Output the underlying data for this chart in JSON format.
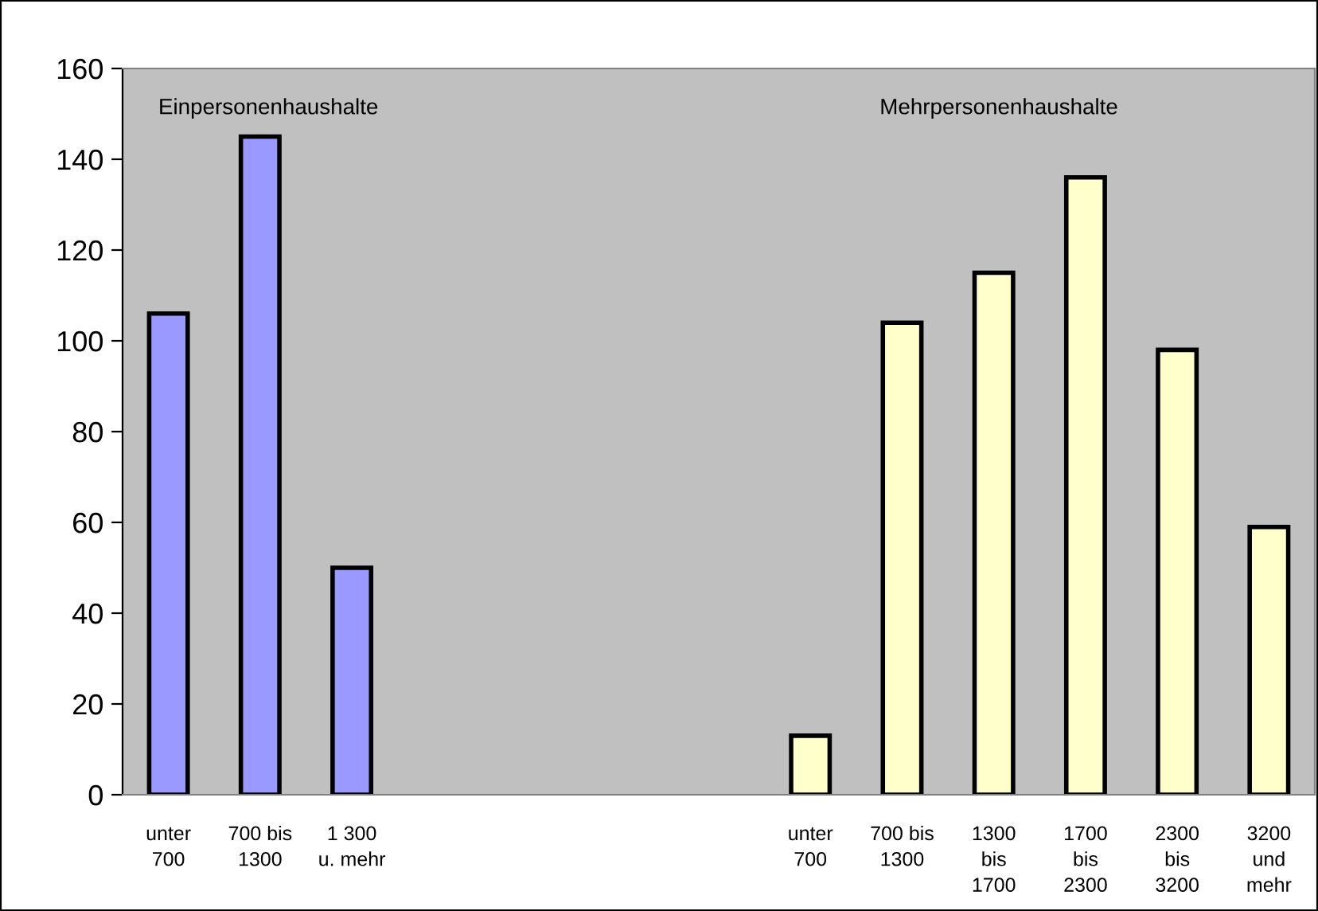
{
  "chart_data": {
    "type": "bar",
    "categories": [
      "unter\n700",
      "700 bis\n1300",
      "1 300\nu. mehr",
      null,
      null,
      null,
      null,
      "unter\n700",
      "700 bis\n1300",
      "1300\nbis\n1700",
      "1700\nbis\n2300",
      "2300\nbis\n3200",
      "3200\nund\nmehr"
    ],
    "series": [
      {
        "color": "#9999ff",
        "values": [
          106,
          145,
          50,
          null,
          null,
          null,
          null,
          null,
          null,
          null,
          null,
          null,
          null
        ]
      },
      {
        "color": "#ffffcc",
        "values": [
          null,
          null,
          null,
          null,
          null,
          null,
          null,
          13,
          104,
          115,
          136,
          98,
          59
        ]
      }
    ],
    "annotations": [
      "Einpersonenhaushalte",
      "Mehrpersonenhaushalte"
    ],
    "ylim": [
      0,
      160
    ],
    "yticks": [
      0,
      20,
      40,
      60,
      80,
      100,
      120,
      140,
      160
    ],
    "grid": false,
    "legend": false
  }
}
